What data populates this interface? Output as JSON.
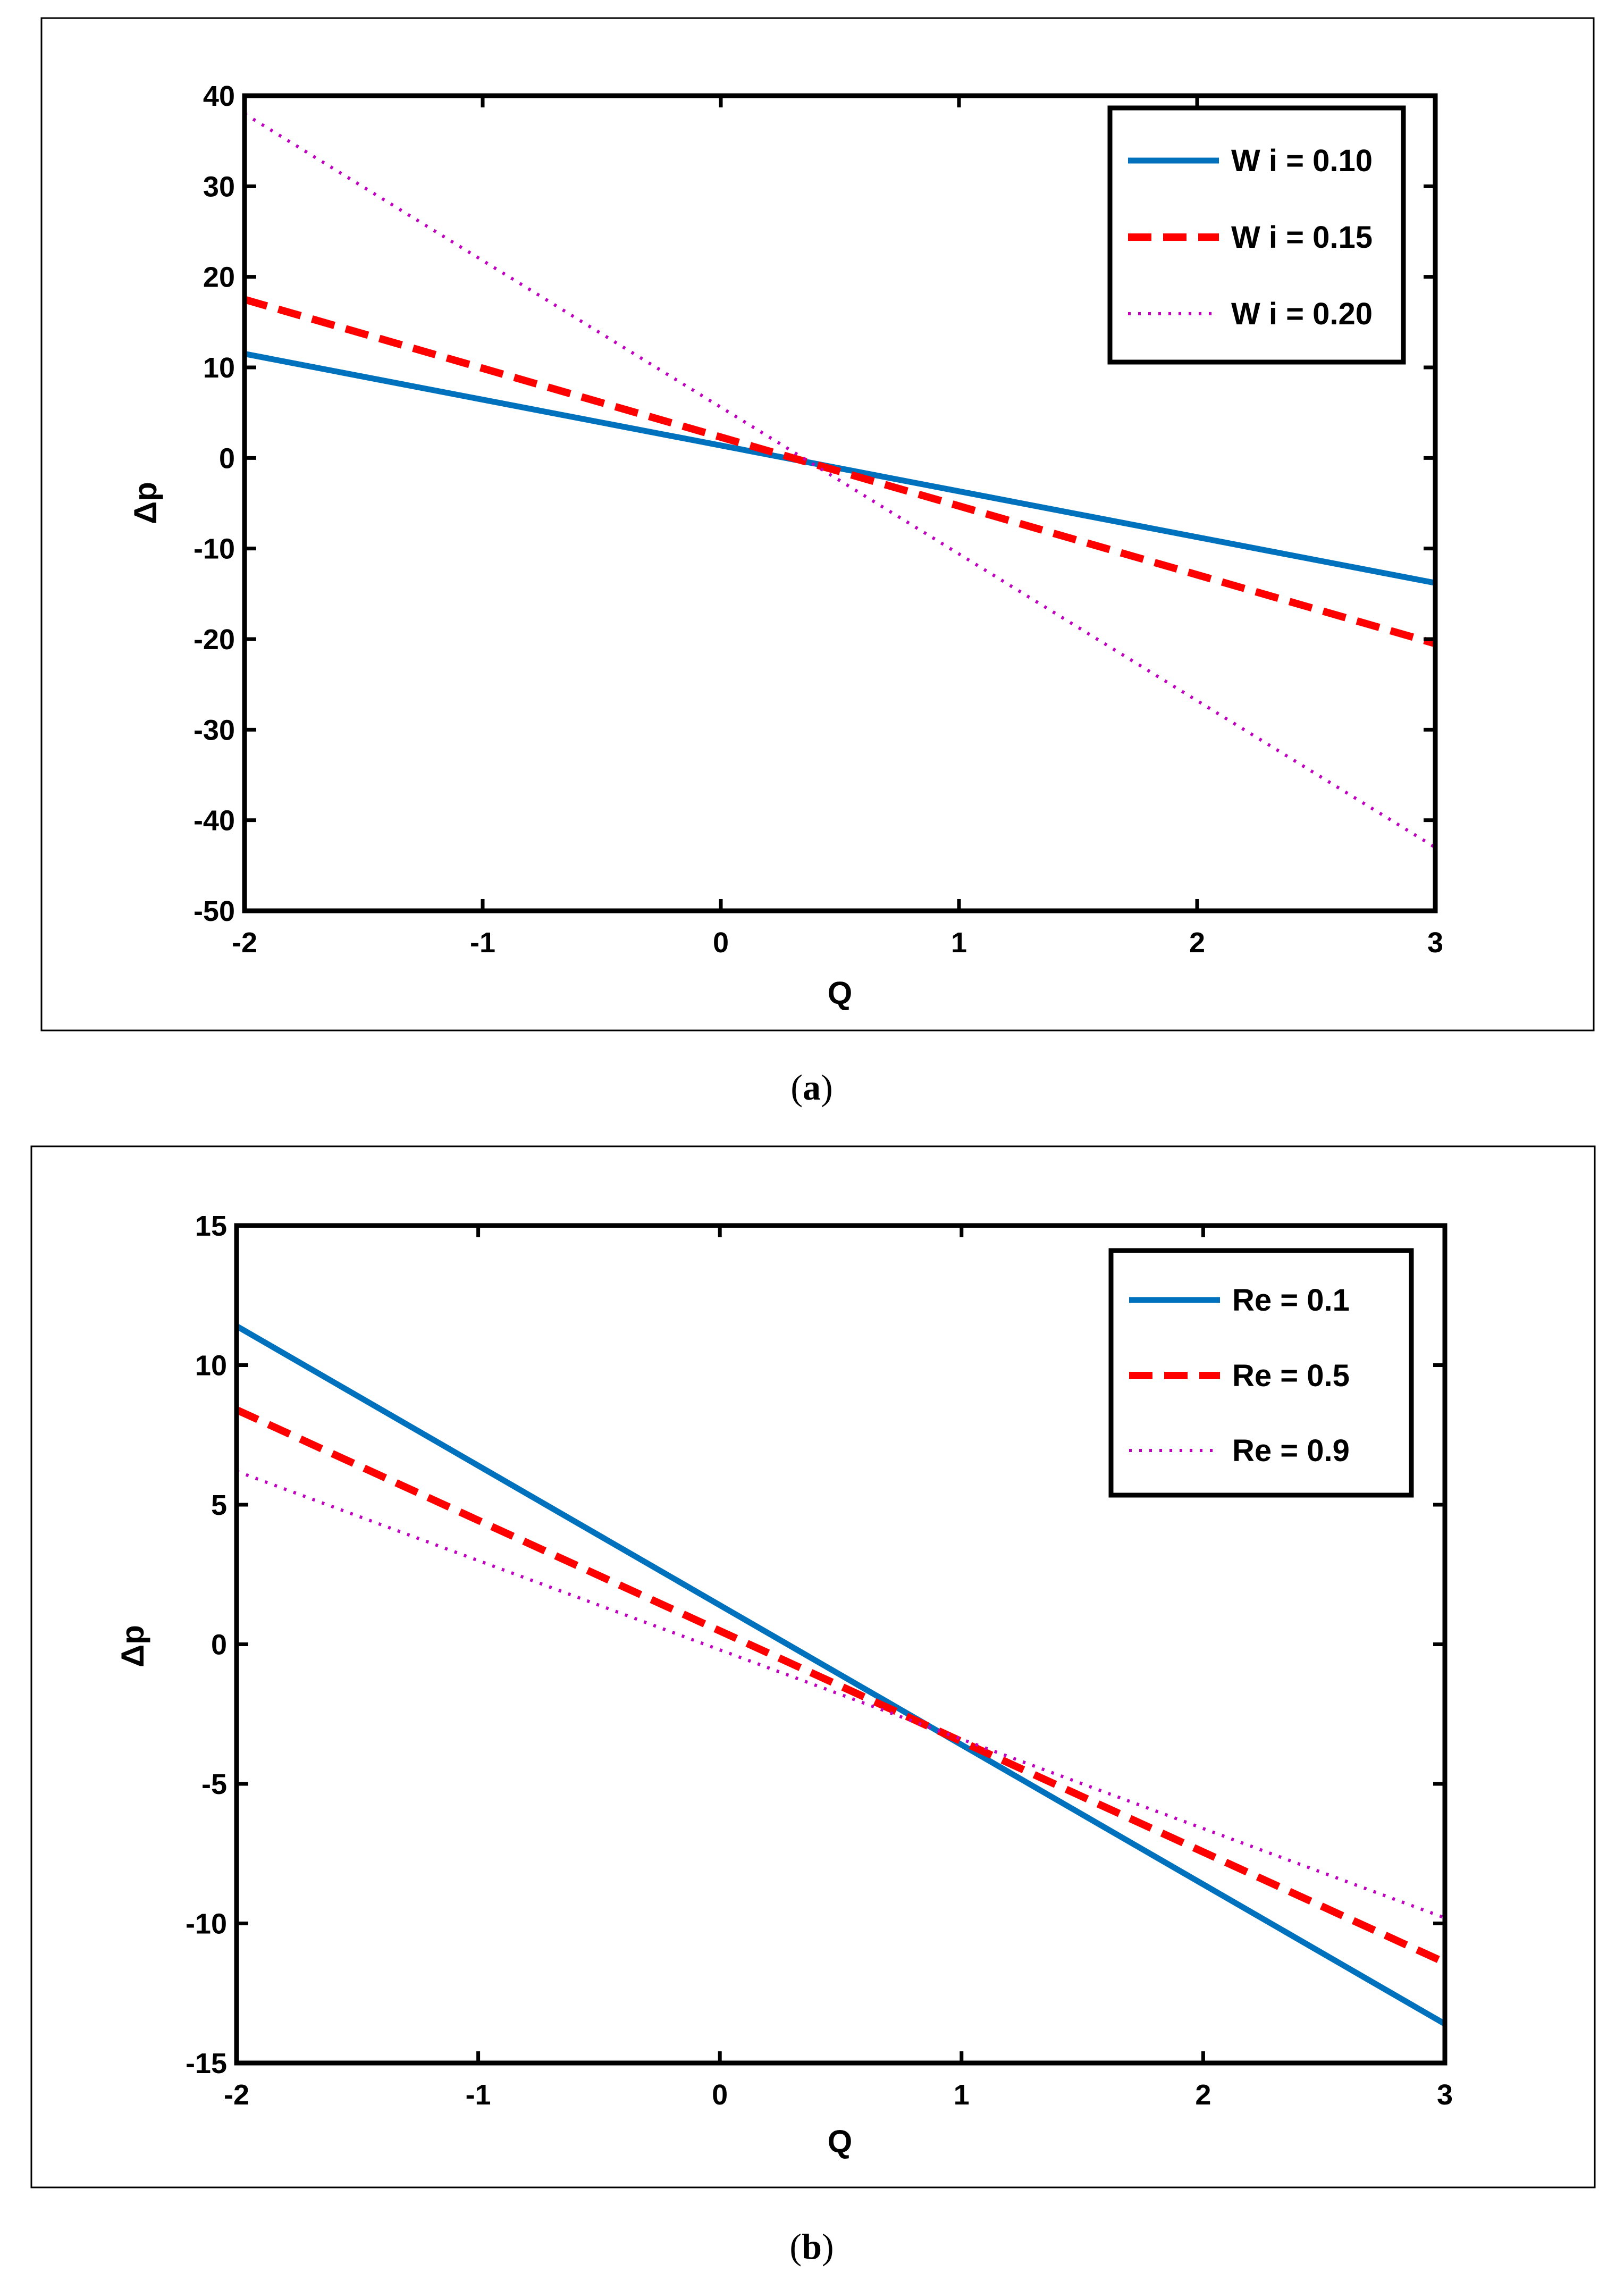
{
  "chart_data": [
    {
      "type": "line",
      "panel_label": "(a)",
      "caption_letter": "a",
      "xlabel": "Q",
      "ylabel": "Δp",
      "xlim": [
        -2,
        3
      ],
      "ylim": [
        -50,
        40
      ],
      "xticks": [
        -2,
        -1,
        0,
        1,
        2,
        3
      ],
      "yticks": [
        40,
        30,
        20,
        10,
        0,
        -10,
        -20,
        -30,
        -40,
        -50
      ],
      "grid": false,
      "legend_position": "top-right",
      "x": [
        -2,
        3
      ],
      "series": [
        {
          "name": "W i = 0.10",
          "values": [
            11.5,
            -13.8
          ],
          "color": "#0072BD",
          "style": "solid"
        },
        {
          "name": "W i = 0.15",
          "values": [
            17.5,
            -20.5
          ],
          "color": "#FF0000",
          "style": "dashed"
        },
        {
          "name": "W i = 0.20",
          "values": [
            38.0,
            -43.0
          ],
          "color": "#BF00BF",
          "style": "dotted"
        }
      ]
    },
    {
      "type": "line",
      "panel_label": "(b)",
      "caption_letter": "b",
      "xlabel": "Q",
      "ylabel": "Δp",
      "xlim": [
        -2,
        3
      ],
      "ylim": [
        -15,
        15
      ],
      "xticks": [
        -2,
        -1,
        0,
        1,
        2,
        3
      ],
      "yticks": [
        15,
        10,
        5,
        0,
        -5,
        -10,
        -15
      ],
      "grid": false,
      "legend_position": "top-right",
      "x": [
        -2,
        3
      ],
      "series": [
        {
          "name": "Re = 0.1",
          "values": [
            11.4,
            -13.6
          ],
          "color": "#0072BD",
          "style": "solid"
        },
        {
          "name": "Re = 0.5",
          "values": [
            8.4,
            -11.4
          ],
          "color": "#FF0000",
          "style": "dashed"
        },
        {
          "name": "Re = 0.9",
          "values": [
            6.2,
            -9.8
          ],
          "color": "#BF00BF",
          "style": "dotted"
        }
      ]
    }
  ]
}
